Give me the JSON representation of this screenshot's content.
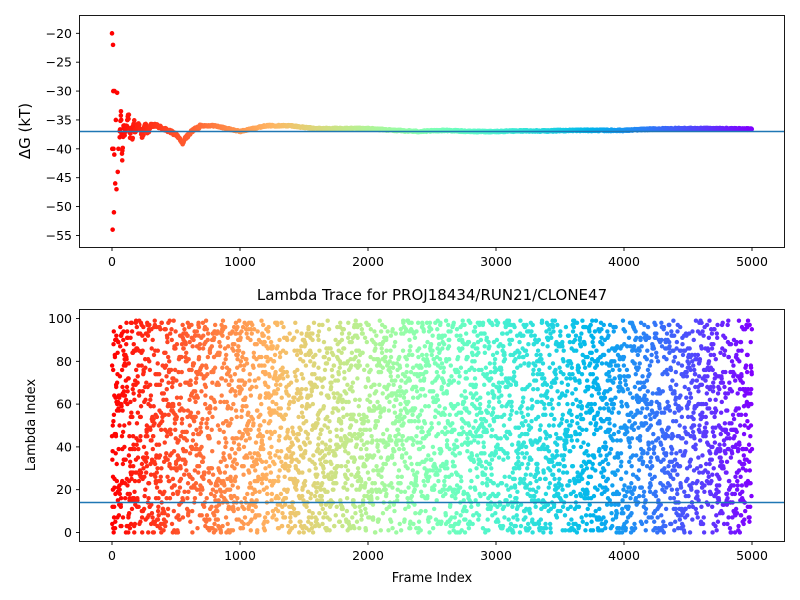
{
  "chart_data": [
    {
      "type": "scatter",
      "title": "",
      "xlabel": "",
      "ylabel": "ΔG (kT)",
      "xlim": [
        -250,
        5250
      ],
      "ylim": [
        -57,
        -17
      ],
      "xticks": [
        0,
        1000,
        2000,
        3000,
        4000,
        5000
      ],
      "yticks": [
        -20,
        -25,
        -30,
        -35,
        -40,
        -45,
        -50,
        -55
      ],
      "reference_line_y": -37,
      "reference_line_color": "#1f77b4",
      "colormap": "rainbow (red at frame 0 → violet at frame 5000)",
      "grid": false,
      "notes": "Running free-energy estimate; early frames scatter widely (≈-20 to -54) then converge to ≈-36.5",
      "series": [
        {
          "x": [
            0,
            2,
            5,
            8,
            10,
            12,
            15,
            18,
            20,
            25,
            30,
            35,
            40,
            45,
            50,
            60,
            70,
            80,
            90,
            100,
            110,
            120,
            130,
            140,
            150,
            160,
            170,
            180,
            190,
            200,
            220,
            240,
            260,
            280,
            300,
            350,
            400,
            450,
            500,
            550,
            580,
            600,
            650,
            700,
            800,
            900,
            1000,
            1100,
            1200,
            1300,
            1400,
            1500,
            1600,
            1700,
            1800,
            1900,
            2000,
            2200,
            2400,
            2600,
            2800,
            3000,
            3200,
            3400,
            3600,
            3800,
            4000,
            4200,
            4400,
            4600,
            4800,
            5000
          ],
          "y": [
            -20,
            -40,
            -54,
            -22,
            -30,
            -40,
            -51,
            -41,
            -30,
            -46,
            -35,
            -47,
            -30.3,
            -44,
            -40,
            -38,
            -33.5,
            -42,
            -36,
            -37,
            -36,
            -35,
            -34,
            -39,
            -36.5,
            -38,
            -35,
            -37,
            -36.5,
            -35.5,
            -37,
            -37.5,
            -36,
            -37,
            -36,
            -36,
            -36.5,
            -37,
            -37.5,
            -39,
            -38,
            -37.5,
            -36.5,
            -36,
            -36,
            -36.5,
            -37,
            -36.5,
            -36,
            -36,
            -36,
            -36.3,
            -36.5,
            -36.5,
            -36.5,
            -36.5,
            -36.5,
            -36.8,
            -37,
            -36.8,
            -37,
            -37,
            -36.9,
            -36.9,
            -36.8,
            -36.8,
            -36.8,
            -36.6,
            -36.5,
            -36.5,
            -36.5,
            -36.6
          ]
        }
      ]
    },
    {
      "type": "scatter",
      "title": "Lambda Trace for PROJ18434/RUN21/CLONE47",
      "xlabel": "Frame Index",
      "ylabel": "Lambda Index",
      "xlim": [
        -250,
        5250
      ],
      "ylim": [
        -4,
        104
      ],
      "xticks": [
        0,
        1000,
        2000,
        3000,
        4000,
        5000
      ],
      "yticks": [
        0,
        20,
        40,
        60,
        80,
        100
      ],
      "reference_line_y": 14,
      "reference_line_color": "#1f77b4",
      "colormap": "rainbow (red at frame 0 → violet at frame 5000)",
      "grid": false,
      "notes": "Lambda index values spread uniformly over 0–99 for all frames 0–5000 (dense scatter)",
      "series": [
        {
          "x_range": [
            0,
            5000
          ],
          "y_range": [
            0,
            99
          ],
          "approx_points": 5000
        }
      ]
    }
  ]
}
